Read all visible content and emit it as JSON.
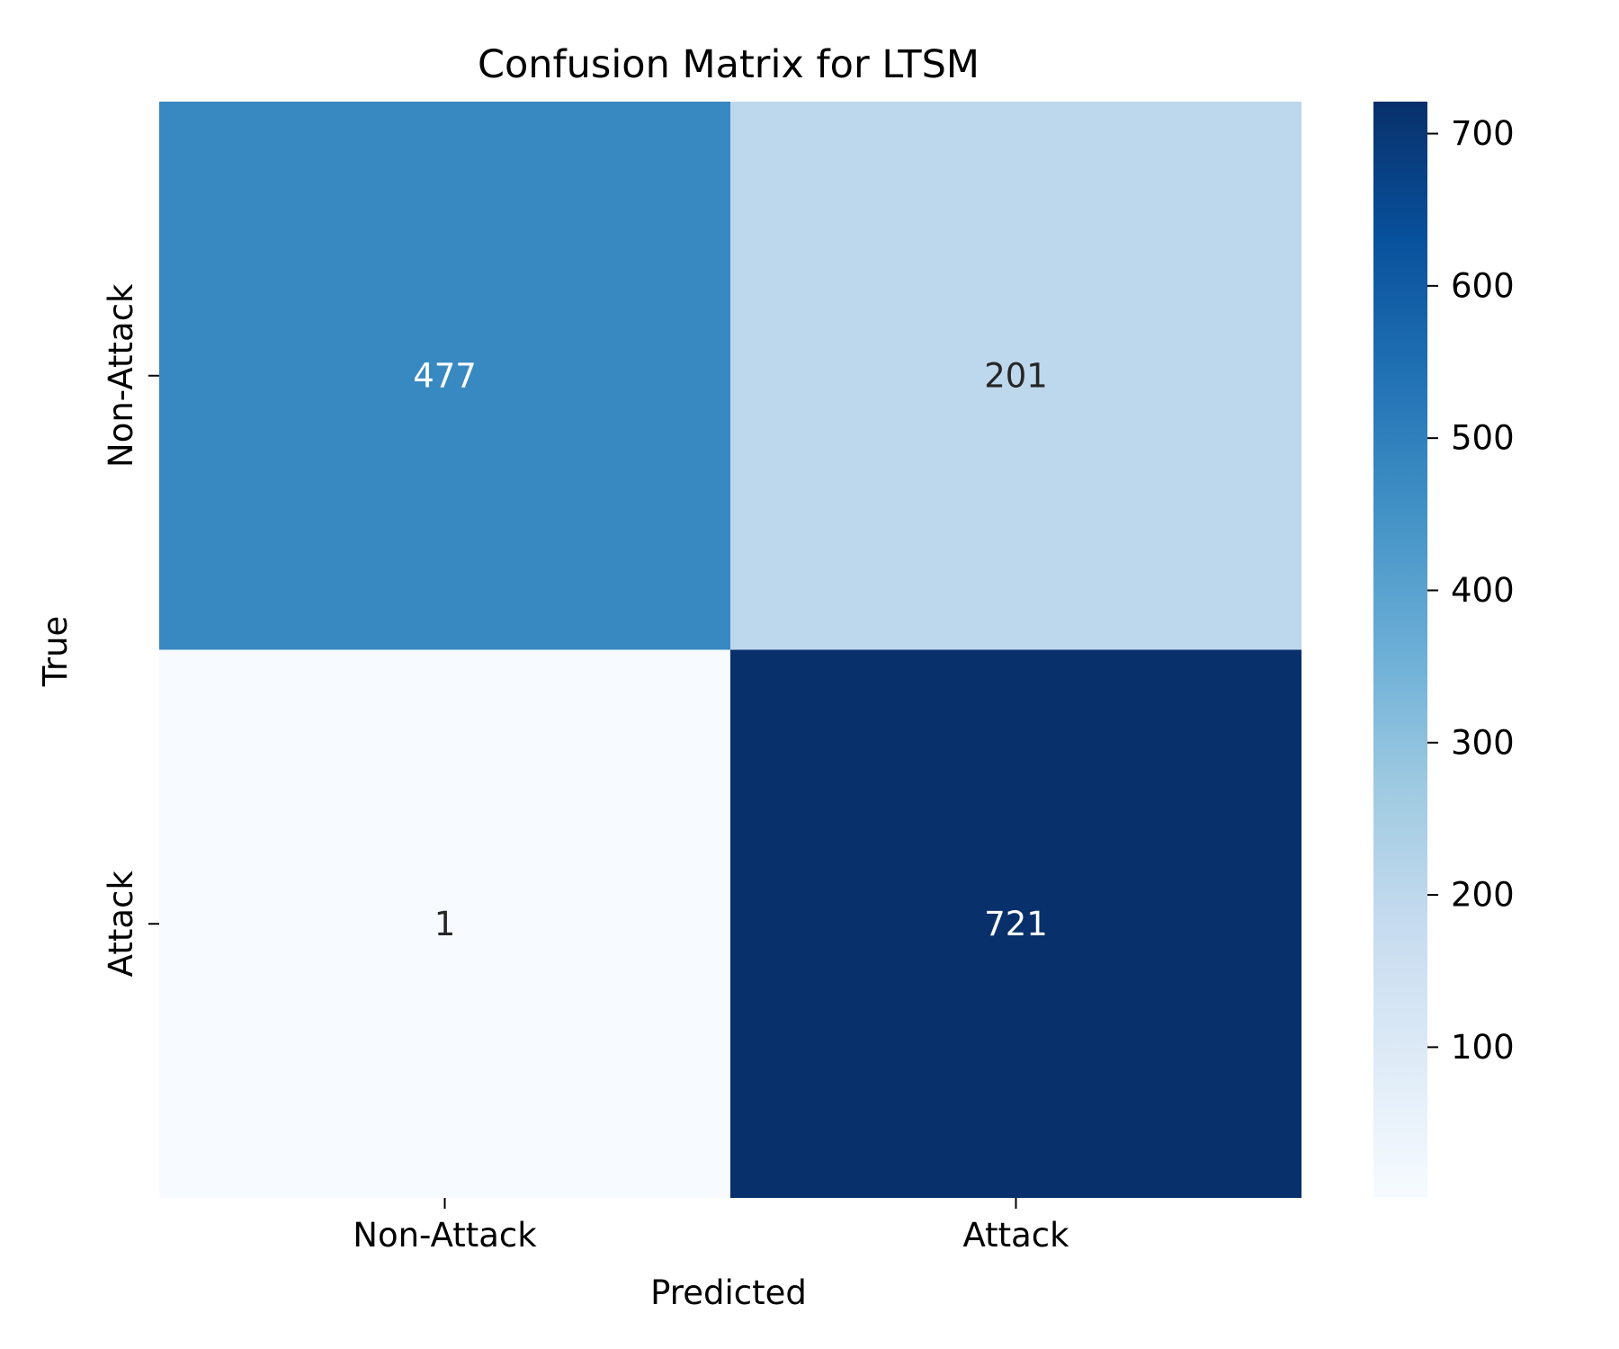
{
  "chart_data": {
    "type": "heatmap",
    "title": "Confusion Matrix for LTSM",
    "xlabel": "Predicted",
    "ylabel": "True",
    "x_categories": [
      "Non-Attack",
      "Attack"
    ],
    "y_categories": [
      "Non-Attack",
      "Attack"
    ],
    "values": [
      [
        477,
        201
      ],
      [
        1,
        721
      ]
    ],
    "colormap": "Blues",
    "colorbar": {
      "range": [
        1,
        721
      ],
      "ticks": [
        100,
        200,
        300,
        400,
        500,
        600,
        700
      ],
      "tick_labels": [
        "100",
        "200",
        "300",
        "400",
        "500",
        "600",
        "700"
      ]
    }
  }
}
